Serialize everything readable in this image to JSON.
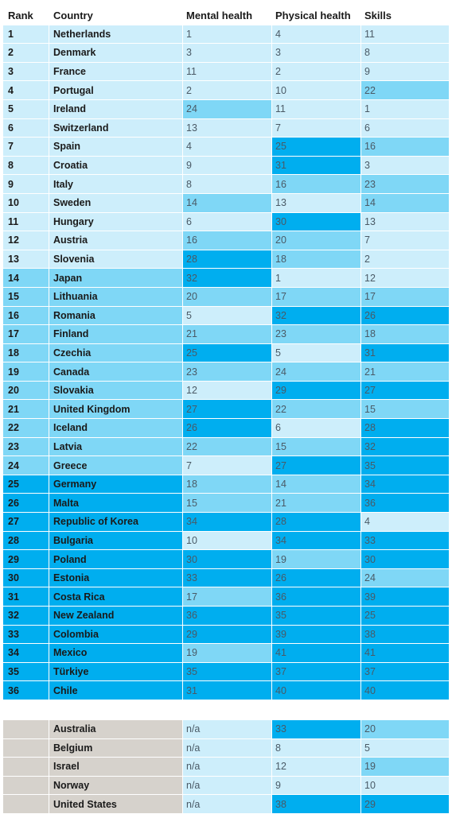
{
  "headers": {
    "rank": "Rank",
    "country": "Country",
    "mental": "Mental health",
    "physical": "Physical health",
    "skills": "Skills"
  },
  "ranked_rows": [
    {
      "rank": "1",
      "country": "Netherlands",
      "mental": "1",
      "physical": "4",
      "skills": "11"
    },
    {
      "rank": "2",
      "country": "Denmark",
      "mental": "3",
      "physical": "3",
      "skills": "8"
    },
    {
      "rank": "3",
      "country": "France",
      "mental": "11",
      "physical": "2",
      "skills": "9"
    },
    {
      "rank": "4",
      "country": "Portugal",
      "mental": "2",
      "physical": "10",
      "skills": "22"
    },
    {
      "rank": "5",
      "country": "Ireland",
      "mental": "24",
      "physical": "11",
      "skills": "1"
    },
    {
      "rank": "6",
      "country": "Switzerland",
      "mental": "13",
      "physical": "7",
      "skills": "6"
    },
    {
      "rank": "7",
      "country": "Spain",
      "mental": "4",
      "physical": "25",
      "skills": "16"
    },
    {
      "rank": "8",
      "country": "Croatia",
      "mental": "9",
      "physical": "31",
      "skills": "3"
    },
    {
      "rank": "9",
      "country": "Italy",
      "mental": "8",
      "physical": "16",
      "skills": "23"
    },
    {
      "rank": "10",
      "country": "Sweden",
      "mental": "14",
      "physical": "13",
      "skills": "14"
    },
    {
      "rank": "11",
      "country": "Hungary",
      "mental": "6",
      "physical": "30",
      "skills": "13"
    },
    {
      "rank": "12",
      "country": "Austria",
      "mental": "16",
      "physical": "20",
      "skills": "7"
    },
    {
      "rank": "13",
      "country": "Slovenia",
      "mental": "28",
      "physical": "18",
      "skills": "2"
    },
    {
      "rank": "14",
      "country": "Japan",
      "mental": "32",
      "physical": "1",
      "skills": "12"
    },
    {
      "rank": "15",
      "country": "Lithuania",
      "mental": "20",
      "physical": "17",
      "skills": "17"
    },
    {
      "rank": "16",
      "country": "Romania",
      "mental": "5",
      "physical": "32",
      "skills": "26"
    },
    {
      "rank": "17",
      "country": "Finland",
      "mental": "21",
      "physical": "23",
      "skills": "18"
    },
    {
      "rank": "18",
      "country": "Czechia",
      "mental": "25",
      "physical": "5",
      "skills": "31"
    },
    {
      "rank": "19",
      "country": "Canada",
      "mental": "23",
      "physical": "24",
      "skills": "21"
    },
    {
      "rank": "20",
      "country": "Slovakia",
      "mental": "12",
      "physical": "29",
      "skills": "27"
    },
    {
      "rank": "21",
      "country": "United Kingdom",
      "mental": "27",
      "physical": "22",
      "skills": "15"
    },
    {
      "rank": "22",
      "country": "Iceland",
      "mental": "26",
      "physical": "6",
      "skills": "28"
    },
    {
      "rank": "23",
      "country": "Latvia",
      "mental": "22",
      "physical": "15",
      "skills": "32"
    },
    {
      "rank": "24",
      "country": "Greece",
      "mental": "7",
      "physical": "27",
      "skills": "35"
    },
    {
      "rank": "25",
      "country": "Germany",
      "mental": "18",
      "physical": "14",
      "skills": "34"
    },
    {
      "rank": "26",
      "country": "Malta",
      "mental": "15",
      "physical": "21",
      "skills": "36"
    },
    {
      "rank": "27",
      "country": "Republic of Korea",
      "mental": "34",
      "physical": "28",
      "skills": "4"
    },
    {
      "rank": "28",
      "country": "Bulgaria",
      "mental": "10",
      "physical": "34",
      "skills": "33"
    },
    {
      "rank": "29",
      "country": "Poland",
      "mental": "30",
      "physical": "19",
      "skills": "30"
    },
    {
      "rank": "30",
      "country": "Estonia",
      "mental": "33",
      "physical": "26",
      "skills": "24"
    },
    {
      "rank": "31",
      "country": "Costa Rica",
      "mental": "17",
      "physical": "36",
      "skills": "39"
    },
    {
      "rank": "32",
      "country": "New Zealand",
      "mental": "36",
      "physical": "35",
      "skills": "25"
    },
    {
      "rank": "33",
      "country": "Colombia",
      "mental": "29",
      "physical": "39",
      "skills": "38"
    },
    {
      "rank": "34",
      "country": "Mexico",
      "mental": "19",
      "physical": "41",
      "skills": "41"
    },
    {
      "rank": "35",
      "country": "Türkiye",
      "mental": "35",
      "physical": "37",
      "skills": "37"
    },
    {
      "rank": "36",
      "country": "Chile",
      "mental": "31",
      "physical": "40",
      "skills": "40"
    }
  ],
  "unranked_rows": [
    {
      "rank": "",
      "country": "Australia",
      "mental": "n/a",
      "physical": "33",
      "skills": "20"
    },
    {
      "rank": "",
      "country": "Belgium",
      "mental": "n/a",
      "physical": "8",
      "skills": "5"
    },
    {
      "rank": "",
      "country": "Israel",
      "mental": "n/a",
      "physical": "12",
      "skills": "19"
    },
    {
      "rank": "",
      "country": "Norway",
      "mental": "n/a",
      "physical": "9",
      "skills": "10"
    },
    {
      "rank": "",
      "country": "United States",
      "mental": "n/a",
      "physical": "38",
      "skills": "29"
    }
  ],
  "colors": {
    "tier_light": "#cdeefb",
    "tier_mid": "#7fd7f6",
    "tier_dark": "#00aeef",
    "unranked_grey": "#d6d2cc"
  }
}
